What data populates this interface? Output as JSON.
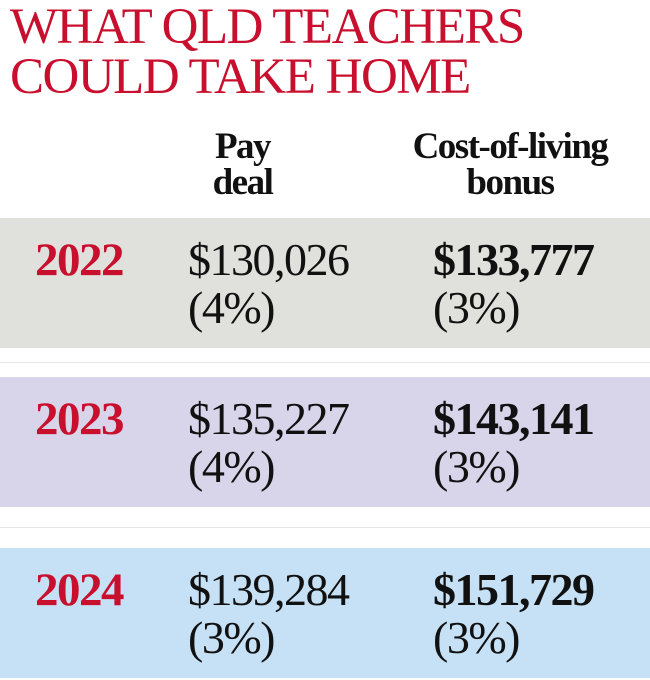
{
  "title": {
    "line1": "WHAT QLD TEACHERS",
    "line2": "COULD TAKE HOME"
  },
  "columns": {
    "pay_deal": {
      "line1": "Pay",
      "line2": "deal"
    },
    "cost_of_living": {
      "line1": "Cost-of-living",
      "line2": "bonus"
    }
  },
  "chart_data": {
    "type": "table",
    "title": "WHAT QLD TEACHERS COULD TAKE HOME",
    "columns": [
      "",
      "Pay deal",
      "Cost-of-living bonus"
    ],
    "rows": [
      {
        "year": "2022",
        "pay_deal": "$130,026",
        "pay_deal_pct": "(4%)",
        "cost_of_living": "$133,777",
        "cost_of_living_pct": "(3%)",
        "color": "#e0e0dc"
      },
      {
        "year": "2023",
        "pay_deal": "$135,227",
        "pay_deal_pct": "(4%)",
        "cost_of_living": "$143,141",
        "cost_of_living_pct": "(3%)",
        "color": "#d8d4ea"
      },
      {
        "year": "2024",
        "pay_deal": "$139,284",
        "pay_deal_pct": "(3%)",
        "cost_of_living": "$151,729",
        "cost_of_living_pct": "(3%)",
        "color": "#c6e1f6"
      }
    ]
  },
  "colors": {
    "accent": "#c8102e",
    "text": "#111111"
  }
}
